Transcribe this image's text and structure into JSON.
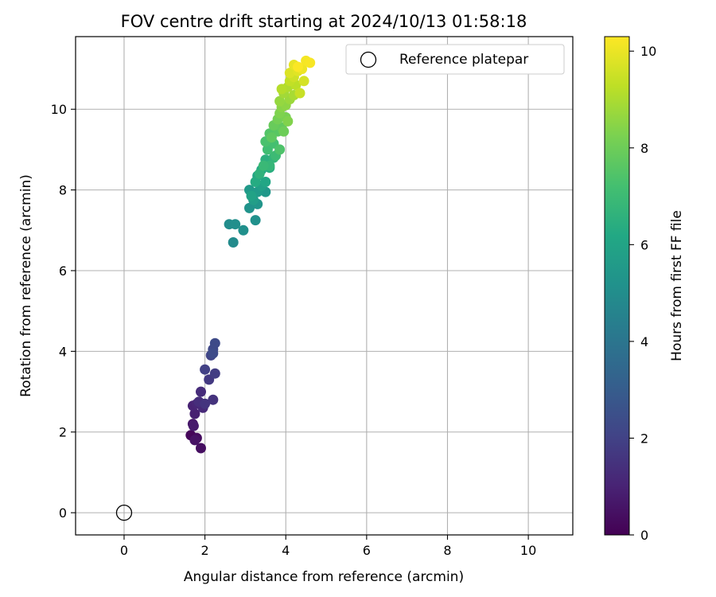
{
  "chart_data": {
    "type": "scatter",
    "title": "FOV centre drift starting at 2024/10/13 01:58:18",
    "xlabel": "Angular distance from reference (arcmin)",
    "ylabel": "Rotation from reference (arcmin)",
    "xlim": [
      -1.2,
      11.1
    ],
    "ylim": [
      -0.55,
      11.8
    ],
    "xticks": [
      0,
      2,
      4,
      6,
      8,
      10
    ],
    "yticks": [
      0,
      2,
      4,
      6,
      8,
      10
    ],
    "grid": true,
    "legend": {
      "placement": "top-right",
      "entries": [
        {
          "label": "Reference platepar",
          "marker": "open-circle"
        }
      ]
    },
    "colorbar": {
      "label": "Hours from first FF file",
      "colormap": "viridis",
      "range": [
        0,
        10.3
      ],
      "ticks": [
        0,
        2,
        4,
        6,
        8,
        10
      ]
    },
    "reference_point": {
      "x": 0,
      "y": 0
    },
    "series": [
      {
        "colored_by": "Hours from first FF file",
        "points": [
          [
            1.65,
            1.92,
            0.15
          ],
          [
            1.8,
            1.85,
            0.3
          ],
          [
            1.9,
            1.6,
            0.4
          ],
          [
            1.75,
            1.8,
            0.5
          ],
          [
            1.7,
            2.2,
            0.65
          ],
          [
            1.72,
            2.15,
            0.75
          ],
          [
            1.75,
            2.45,
            0.9
          ],
          [
            1.7,
            2.65,
            1.0
          ],
          [
            1.8,
            2.7,
            1.1
          ],
          [
            1.95,
            2.6,
            1.2
          ],
          [
            1.9,
            3.0,
            1.3
          ],
          [
            1.85,
            2.75,
            1.35
          ],
          [
            2.2,
            2.8,
            1.5
          ],
          [
            2.0,
            2.7,
            1.55
          ],
          [
            2.1,
            3.3,
            1.7
          ],
          [
            2.25,
            3.45,
            1.85
          ],
          [
            2.0,
            3.55,
            1.95
          ],
          [
            2.15,
            3.9,
            2.1
          ],
          [
            2.2,
            4.05,
            2.2
          ],
          [
            2.25,
            4.2,
            2.3
          ],
          [
            2.2,
            3.95,
            2.35
          ],
          [
            2.7,
            6.7,
            4.9
          ],
          [
            2.6,
            7.15,
            5.0
          ],
          [
            2.75,
            7.15,
            5.05
          ],
          [
            2.95,
            7.0,
            5.1
          ],
          [
            3.25,
            7.25,
            5.15
          ],
          [
            3.1,
            7.55,
            5.25
          ],
          [
            3.3,
            7.65,
            5.35
          ],
          [
            3.5,
            7.95,
            5.4
          ],
          [
            3.1,
            8.0,
            5.5
          ],
          [
            3.3,
            7.95,
            5.6
          ],
          [
            3.2,
            7.75,
            5.7
          ],
          [
            3.4,
            8.1,
            5.8
          ],
          [
            3.15,
            7.85,
            5.9
          ],
          [
            3.3,
            8.35,
            6.0
          ],
          [
            3.5,
            8.2,
            6.1
          ],
          [
            3.4,
            8.5,
            6.2
          ],
          [
            3.25,
            8.2,
            6.3
          ],
          [
            3.6,
            8.55,
            6.4
          ],
          [
            3.5,
            8.75,
            6.5
          ],
          [
            3.35,
            8.4,
            6.6
          ],
          [
            3.7,
            8.8,
            6.7
          ],
          [
            3.6,
            8.6,
            6.8
          ],
          [
            3.45,
            8.6,
            6.9
          ],
          [
            3.75,
            8.85,
            7.0
          ],
          [
            3.55,
            9.0,
            7.1
          ],
          [
            3.7,
            9.15,
            7.2
          ],
          [
            3.5,
            9.2,
            7.3
          ],
          [
            3.85,
            9.0,
            7.4
          ],
          [
            3.6,
            9.4,
            7.5
          ],
          [
            3.8,
            9.45,
            7.6
          ],
          [
            3.65,
            9.3,
            7.7
          ],
          [
            3.9,
            9.55,
            7.8
          ],
          [
            3.7,
            9.6,
            7.9
          ],
          [
            3.95,
            9.45,
            8.0
          ],
          [
            3.8,
            9.75,
            8.1
          ],
          [
            4.0,
            9.8,
            8.2
          ],
          [
            3.85,
            9.9,
            8.3
          ],
          [
            4.05,
            9.7,
            8.35
          ],
          [
            3.9,
            10.05,
            8.45
          ],
          [
            4.0,
            10.1,
            8.55
          ],
          [
            3.85,
            10.2,
            8.65
          ],
          [
            4.1,
            10.25,
            8.75
          ],
          [
            3.95,
            10.4,
            8.85
          ],
          [
            4.2,
            10.35,
            8.95
          ],
          [
            4.05,
            10.55,
            9.05
          ],
          [
            3.9,
            10.5,
            9.15
          ],
          [
            4.25,
            10.6,
            9.25
          ],
          [
            4.1,
            10.7,
            9.35
          ],
          [
            4.35,
            10.4,
            9.45
          ],
          [
            4.2,
            10.8,
            9.55
          ],
          [
            4.45,
            10.7,
            9.65
          ],
          [
            4.1,
            10.9,
            9.75
          ],
          [
            4.3,
            10.95,
            9.85
          ],
          [
            4.2,
            11.1,
            9.95
          ],
          [
            4.4,
            11.0,
            10.05
          ],
          [
            4.5,
            11.2,
            10.15
          ],
          [
            4.6,
            11.15,
            10.2
          ],
          [
            4.3,
            11.05,
            10.25
          ]
        ]
      }
    ]
  }
}
